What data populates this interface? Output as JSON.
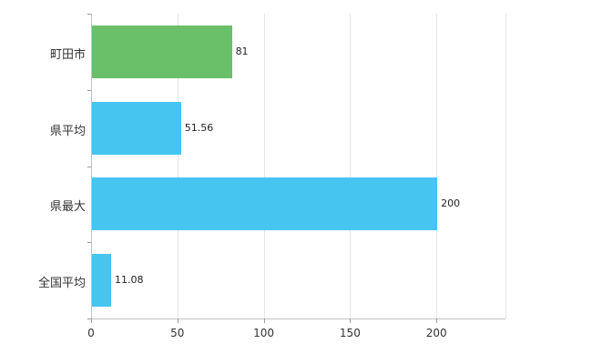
{
  "chart_data": {
    "type": "bar",
    "orientation": "horizontal",
    "title": "",
    "xlabel": "",
    "ylabel": "",
    "categories": [
      "町田市",
      "県平均",
      "県最大",
      "全国平均"
    ],
    "values": [
      81,
      51.56,
      200,
      11.08
    ],
    "value_labels": [
      "81",
      "51.56",
      "200",
      "11.08"
    ],
    "bar_colors": [
      "#6abf69",
      "#45c5f0",
      "#45c5f0",
      "#45c5f0"
    ],
    "xlim": [
      0,
      240
    ],
    "xticks": [
      0,
      50,
      100,
      150,
      200
    ],
    "xtick_labels": [
      "0",
      "50",
      "100",
      "150",
      "200"
    ],
    "grid": true,
    "legend": "none",
    "colors": {
      "background": "#ffffff",
      "gridline": "#e7e7e7",
      "axis": "#c3c3c3",
      "tick": "#9b9b9b",
      "text": "#333333",
      "green_bar": "#6abf69",
      "blue_bar": "#45c5f0"
    }
  }
}
